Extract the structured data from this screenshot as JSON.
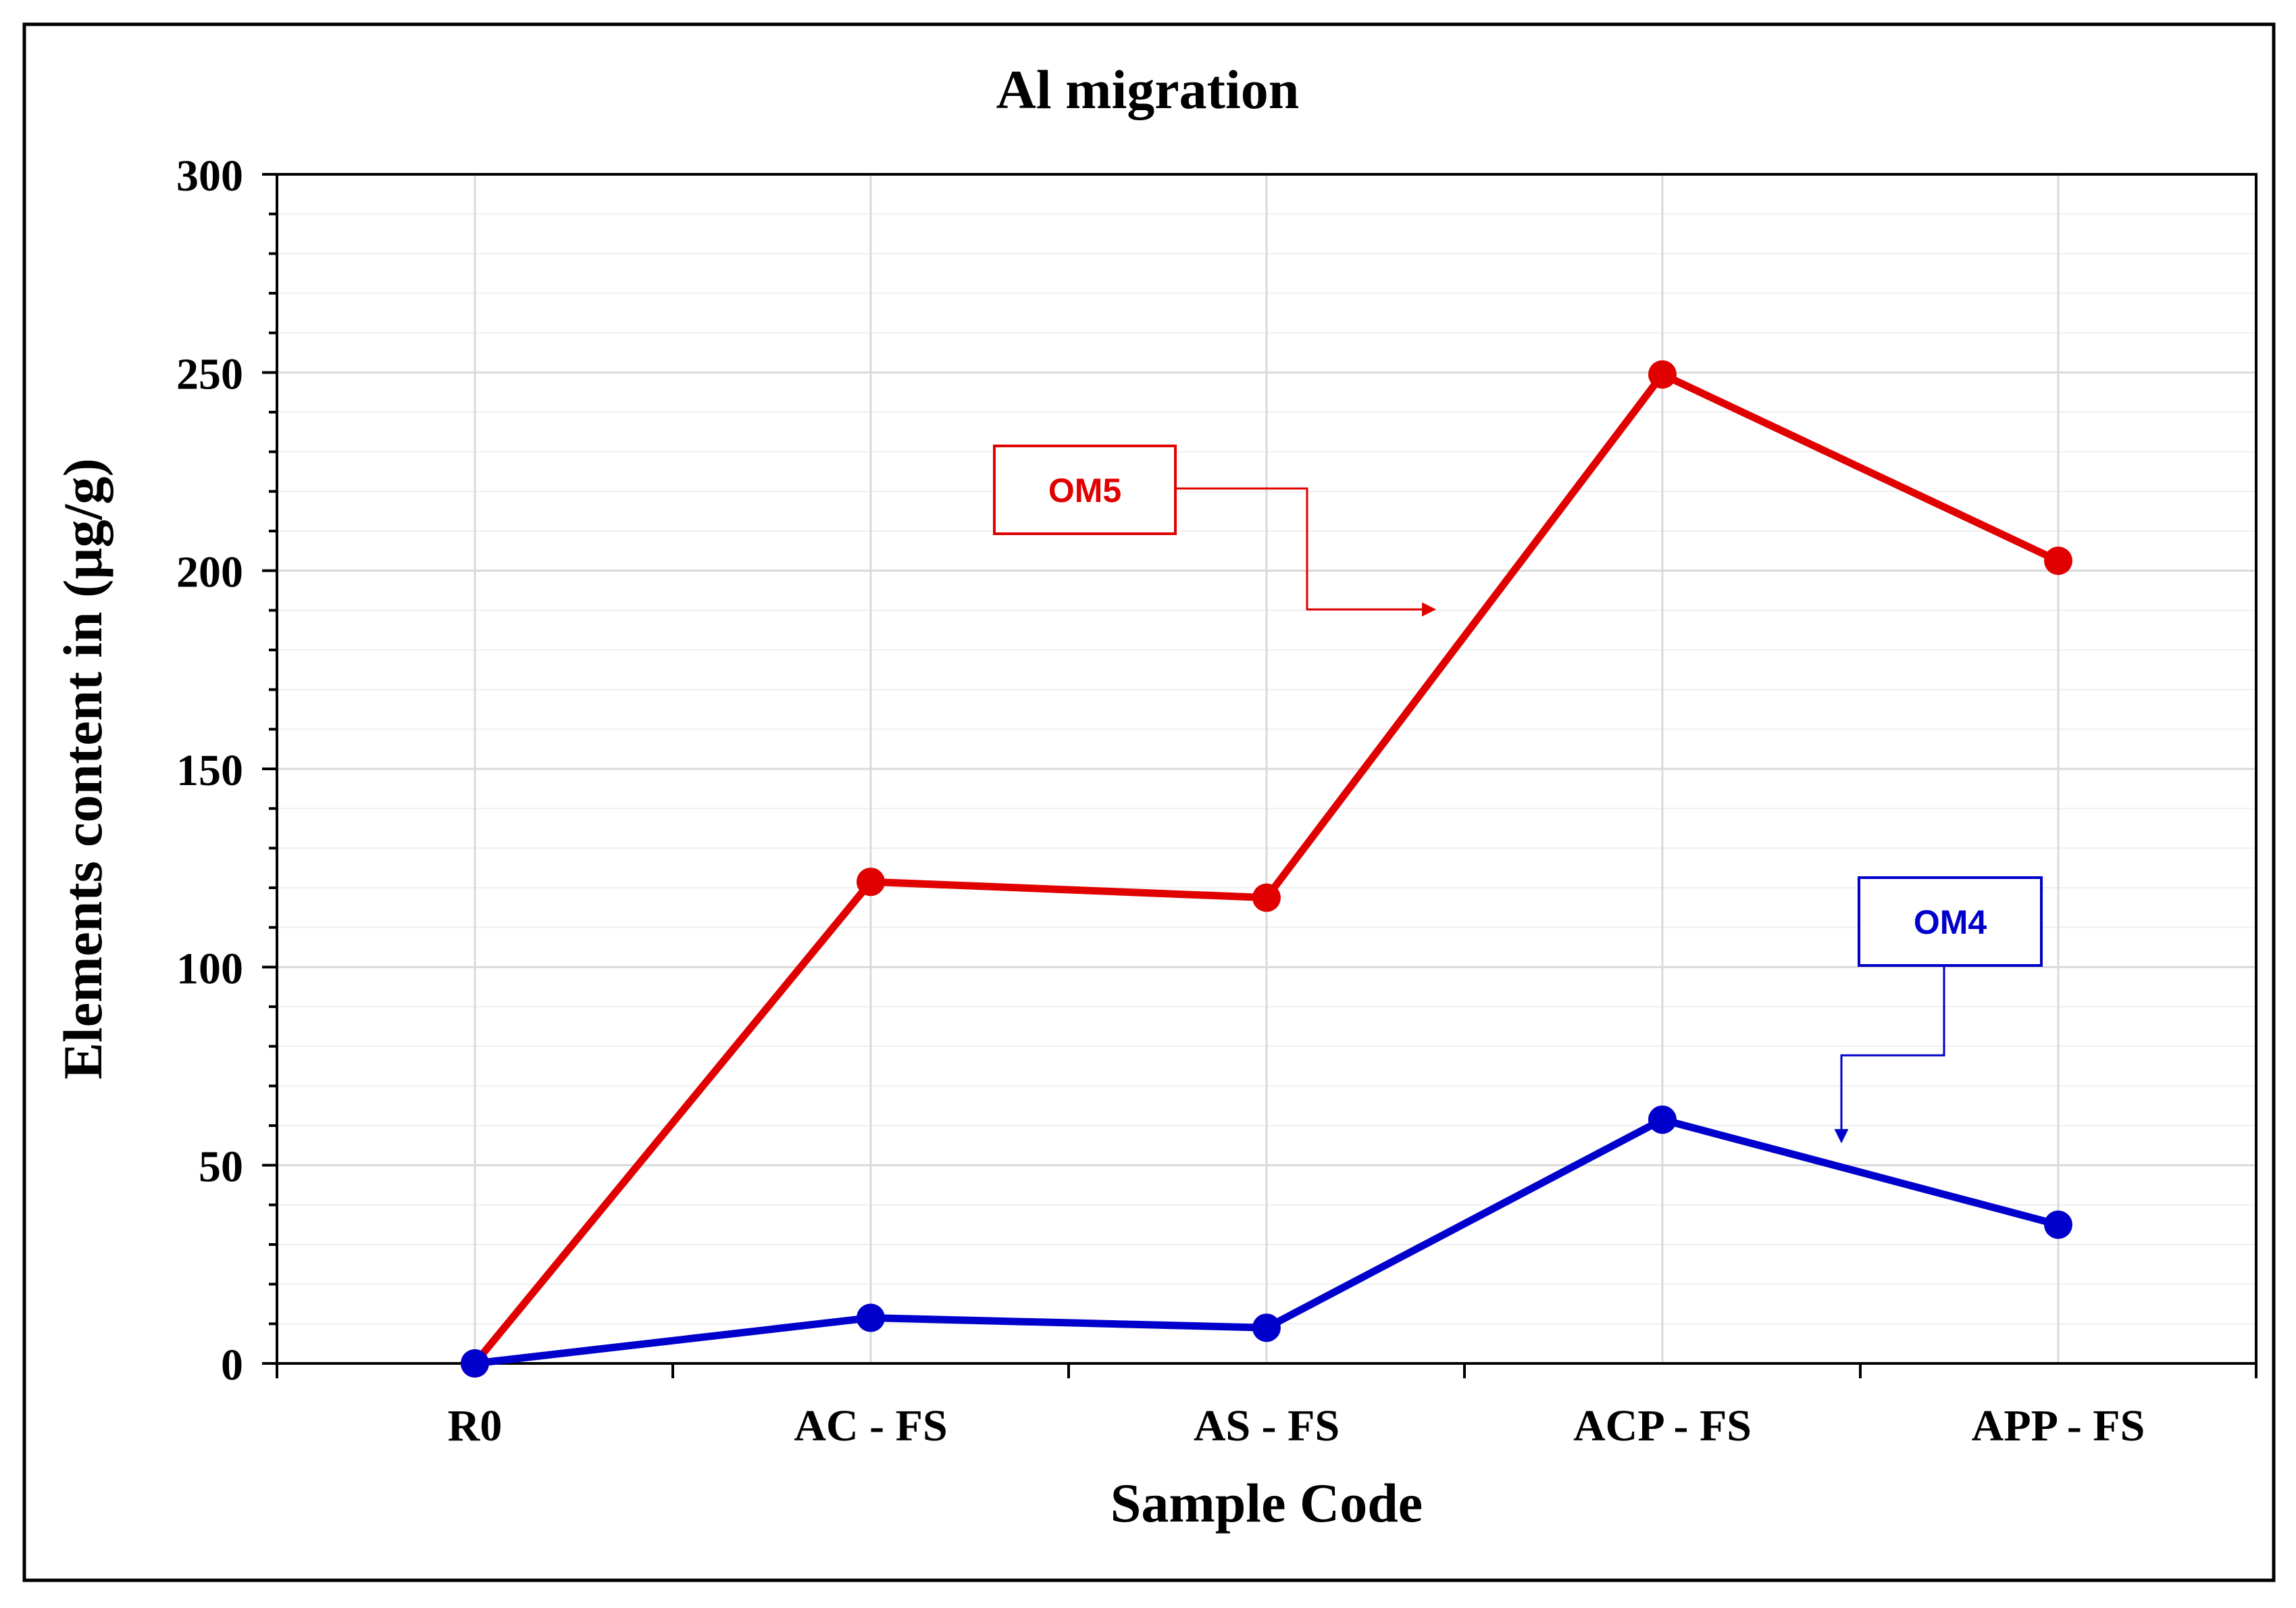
{
  "chart_data": {
    "type": "line",
    "title": "Al migration",
    "xlabel": "Sample Code",
    "ylabel": "Elements content in (µg/g)",
    "categories": [
      "R0",
      "AC - FS",
      "AS - FS",
      "ACP - FS",
      "APP - FS"
    ],
    "ylim": [
      0,
      300
    ],
    "y_major_step": 50,
    "y_minor_step": 10,
    "yticks": [
      "0",
      "50",
      "100",
      "150",
      "200",
      "250",
      "300"
    ],
    "grid": true,
    "series": [
      {
        "name": "OM5",
        "color": "#e00000",
        "values": [
          0,
          121.5,
          117.5,
          249.5,
          202.5
        ]
      },
      {
        "name": "OM4",
        "color": "#0000cc",
        "values": [
          0,
          11.5,
          9,
          61.5,
          35
        ]
      }
    ],
    "annotations": [
      {
        "label": "OM5",
        "color": "#e00000"
      },
      {
        "label": "OM4",
        "color": "#0000cc"
      }
    ]
  }
}
